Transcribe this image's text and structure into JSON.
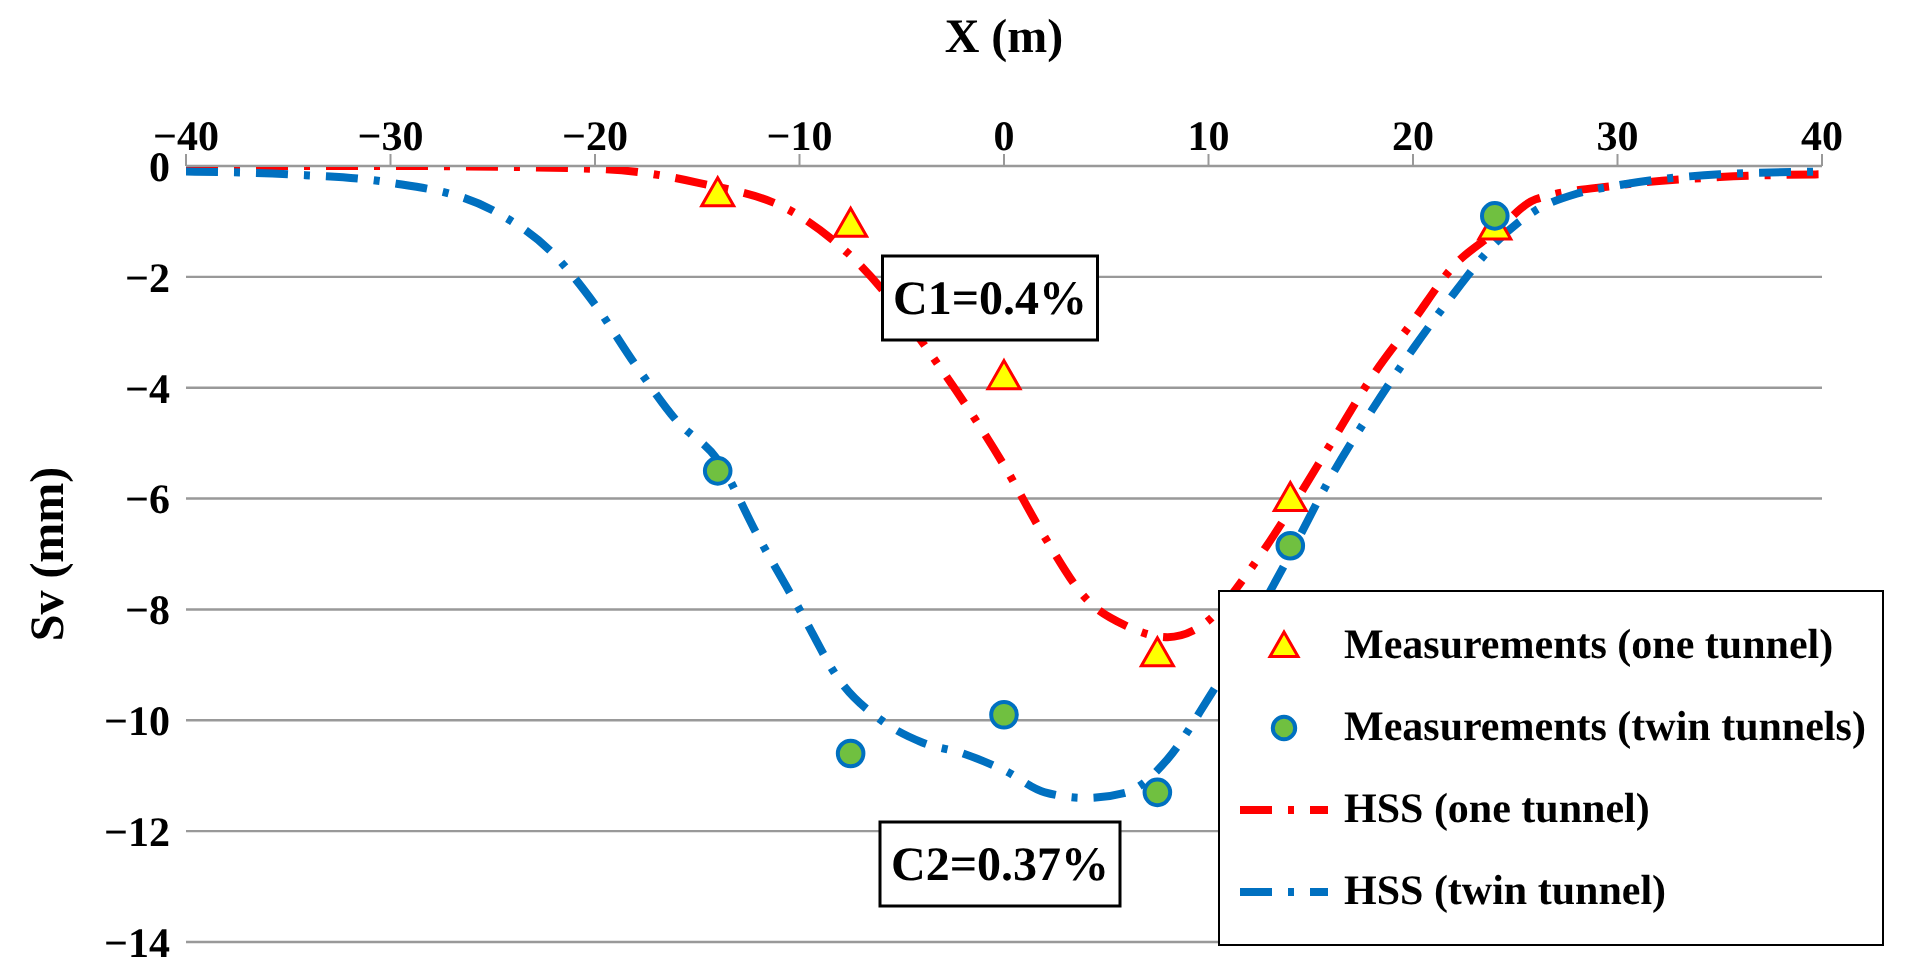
{
  "chart_data": {
    "type": "line",
    "xlabel": "X (m)",
    "ylabel": "Sv (mm)",
    "xlim": [
      -40,
      40
    ],
    "xticks": [
      -40,
      -30,
      -20,
      -10,
      0,
      10,
      20,
      30,
      40
    ],
    "ylim": [
      -14,
      0
    ],
    "yticks": [
      -14,
      -12,
      -10,
      -8,
      -6,
      -4,
      -2,
      0
    ],
    "grid": "y",
    "legend": "bottom right",
    "annotations": [
      "C1=0.4%",
      "C2=0.37%"
    ],
    "series": [
      {
        "name": "Measurements (one tunnel)",
        "type": "scatter",
        "marker": "triangle",
        "color": "#ffff00",
        "x": [
          -14,
          -7.5,
          0,
          7.5,
          14,
          24
        ],
        "values": [
          -0.5,
          -1.05,
          -3.8,
          -8.8,
          -6.0,
          -1.1
        ]
      },
      {
        "name": "Measurements (twin tunnels)",
        "type": "scatter",
        "marker": "circle",
        "color": "#70c040",
        "x": [
          -14,
          -7.5,
          0,
          7.5,
          14,
          24
        ],
        "values": [
          -5.5,
          -10.6,
          -9.9,
          -11.3,
          -6.85,
          -0.9
        ]
      },
      {
        "name": "HSS (one tunnel)",
        "type": "line",
        "line_style": "dashdot",
        "color": "#ff0000",
        "x": [
          -40,
          -30,
          -20,
          -15,
          -10,
          -7,
          -3,
          0,
          2,
          4,
          6,
          8,
          10,
          12,
          14,
          16,
          18,
          20,
          22,
          24,
          26,
          30,
          35,
          40
        ],
        "values": [
          0,
          0,
          -0.05,
          -0.3,
          -0.9,
          -1.8,
          -3.7,
          -5.4,
          -6.7,
          -7.8,
          -8.3,
          -8.5,
          -8.2,
          -7.3,
          -6.2,
          -5.0,
          -3.8,
          -2.8,
          -1.8,
          -1.2,
          -0.6,
          -0.35,
          -0.2,
          -0.15
        ]
      },
      {
        "name": "HSS (twin tunnel)",
        "type": "line",
        "line_style": "dashdot",
        "color": "#0070c0",
        "x": [
          -40,
          -35,
          -30,
          -25,
          -22,
          -20,
          -18,
          -16,
          -14,
          -12,
          -10,
          -8,
          -6,
          -4,
          -2,
          0,
          2,
          4,
          6,
          8,
          10,
          14,
          16,
          18,
          20,
          22,
          24,
          26,
          28,
          30,
          35,
          40
        ],
        "values": [
          -0.1,
          -0.15,
          -0.3,
          -0.8,
          -1.6,
          -2.5,
          -3.6,
          -4.6,
          -5.3,
          -6.7,
          -8.0,
          -9.3,
          -10.0,
          -10.4,
          -10.6,
          -10.9,
          -11.3,
          -11.4,
          -11.3,
          -10.7,
          -9.6,
          -7.0,
          -5.6,
          -4.4,
          -3.3,
          -2.3,
          -1.4,
          -0.8,
          -0.5,
          -0.35,
          -0.15,
          -0.1
        ]
      }
    ]
  }
}
